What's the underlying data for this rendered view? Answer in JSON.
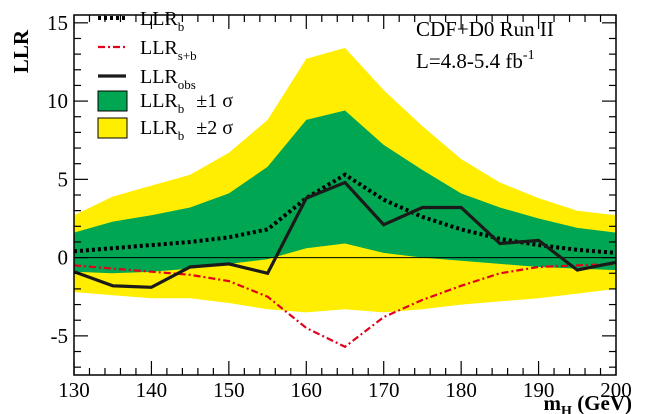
{
  "chart_data": {
    "type": "line",
    "annotation": {
      "line1": "CDF+D0 Run II",
      "line2_base": "L=4.8-5.4 fb",
      "line2_sup": "-1"
    },
    "ylabel": "LLR",
    "xlabel": {
      "base": "m",
      "sub": "H",
      "unit": " (GeV)"
    },
    "xlim": [
      130,
      200
    ],
    "ylim": [
      -7.5,
      15.5
    ],
    "xticks": [
      130,
      140,
      150,
      160,
      170,
      180,
      190,
      200
    ],
    "yticks": [
      -5,
      0,
      5,
      10,
      15
    ],
    "legend": [
      {
        "key": "llr_b",
        "base": "LLR",
        "sub": "b",
        "suffix": ""
      },
      {
        "key": "llr_sb",
        "base": "LLR",
        "sub": "s+b",
        "suffix": ""
      },
      {
        "key": "llr_obs",
        "base": "LLR",
        "sub": "obs",
        "suffix": ""
      },
      {
        "key": "band1",
        "base": "LLR",
        "sub": "b",
        "suffix": "±1 σ"
      },
      {
        "key": "band2",
        "base": "LLR",
        "sub": "b",
        "suffix": "±2 σ"
      }
    ],
    "colors": {
      "band2": "#ffee00",
      "band1": "#00a651",
      "llr_b": "#000000",
      "llr_sb": "#e3001b",
      "llr_obs": "#1a1a1a"
    },
    "x": [
      130,
      135,
      140,
      145,
      150,
      155,
      160,
      165,
      170,
      175,
      180,
      185,
      190,
      195,
      200
    ],
    "series": {
      "llr_b": [
        0.4,
        0.6,
        0.8,
        1.0,
        1.3,
        1.8,
        3.8,
        5.3,
        3.7,
        2.6,
        1.8,
        1.2,
        0.8,
        0.5,
        0.3
      ],
      "llr_sb": [
        -0.5,
        -0.7,
        -0.9,
        -1.1,
        -1.5,
        -2.5,
        -4.5,
        -5.7,
        -3.8,
        -2.7,
        -1.8,
        -1.0,
        -0.6,
        -0.5,
        -0.4
      ],
      "llr_obs": [
        -0.9,
        -1.8,
        -1.9,
        -0.6,
        -0.4,
        -1.0,
        3.8,
        4.8,
        2.1,
        3.2,
        3.2,
        0.9,
        1.1,
        -0.8,
        -0.3
      ],
      "band1_upper": [
        1.6,
        2.3,
        2.7,
        3.2,
        4.1,
        5.8,
        8.8,
        9.4,
        7.2,
        5.6,
        4.1,
        3.2,
        2.5,
        1.9,
        1.6
      ],
      "band1_lower": [
        -0.9,
        -1.0,
        -0.9,
        -0.7,
        -0.4,
        -0.1,
        0.6,
        0.9,
        0.3,
        0.0,
        -0.2,
        -0.4,
        -0.6,
        -0.7,
        -0.8
      ],
      "band2_upper": [
        2.7,
        3.9,
        4.6,
        5.3,
        6.7,
        8.8,
        12.7,
        13.4,
        10.7,
        8.4,
        6.3,
        4.8,
        3.8,
        3.0,
        2.7
      ],
      "band2_lower": [
        -2.2,
        -2.4,
        -2.6,
        -2.6,
        -2.9,
        -3.3,
        -3.5,
        -3.3,
        -3.5,
        -3.3,
        -3.0,
        -2.8,
        -2.6,
        -2.3,
        -2.0
      ]
    }
  }
}
